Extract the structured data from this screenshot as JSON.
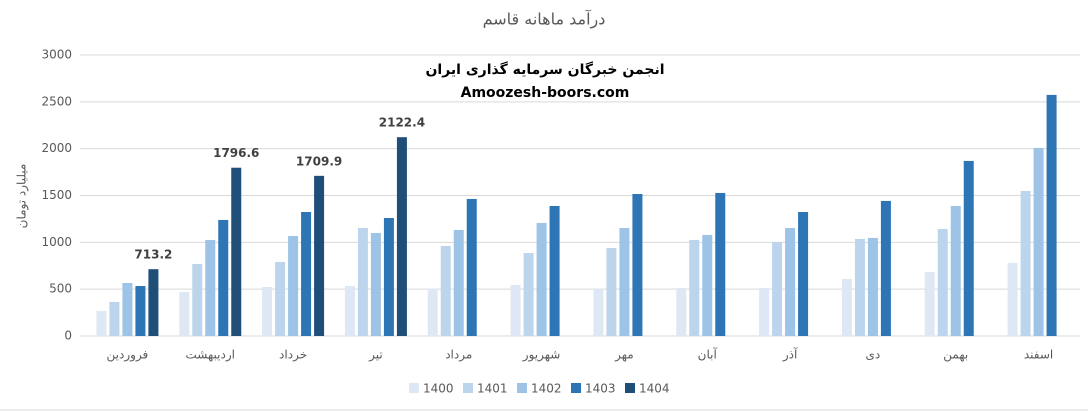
{
  "chart_data": {
    "type": "bar",
    "title": "درآمد ماهانه قاسم",
    "y_label": "میلیارد تومان",
    "annotations": [
      "انجمن خبرگان سرمایه گذاری ایران",
      "Amoozesh-boors.com"
    ],
    "categories": [
      "فروردین",
      "اردیبهشت",
      "خرداد",
      "تیر",
      "مرداد",
      "شهریور",
      "مهر",
      "آبان",
      "آذر",
      "دی",
      "بهمن",
      "اسفند"
    ],
    "series": [
      {
        "name": "1400",
        "color": "#dde8f4",
        "values": [
          267,
          470,
          523,
          534,
          502,
          545,
          502,
          513,
          513,
          609,
          684,
          780
        ]
      },
      {
        "name": "1401",
        "color": "#bdd5ec",
        "values": [
          363,
          769,
          790,
          1153,
          961,
          886,
          940,
          1025,
          1004,
          1036,
          1143,
          1548
        ]
      },
      {
        "name": "1402",
        "color": "#9dc3e6",
        "values": [
          566,
          1025,
          1068,
          1100,
          1132,
          1207,
          1153,
          1079,
          1153,
          1047,
          1388,
          2008
        ]
      },
      {
        "name": "1403",
        "color": "#2e75b6",
        "values": [
          534,
          1239,
          1324,
          1260,
          1463,
          1388,
          1516,
          1527,
          1324,
          1442,
          1869,
          2574
        ]
      },
      {
        "name": "1404",
        "color": "#1f4e79",
        "values": [
          713.2,
          1796.6,
          1709.9,
          2122.4,
          null,
          null,
          null,
          null,
          null,
          null,
          null,
          null
        ],
        "data_labels": true
      }
    ],
    "ylim": [
      0,
      3000
    ],
    "yticks": [
      0,
      500,
      1000,
      1500,
      2000,
      2500,
      3000
    ],
    "grid": true,
    "legend": "bottom"
  }
}
